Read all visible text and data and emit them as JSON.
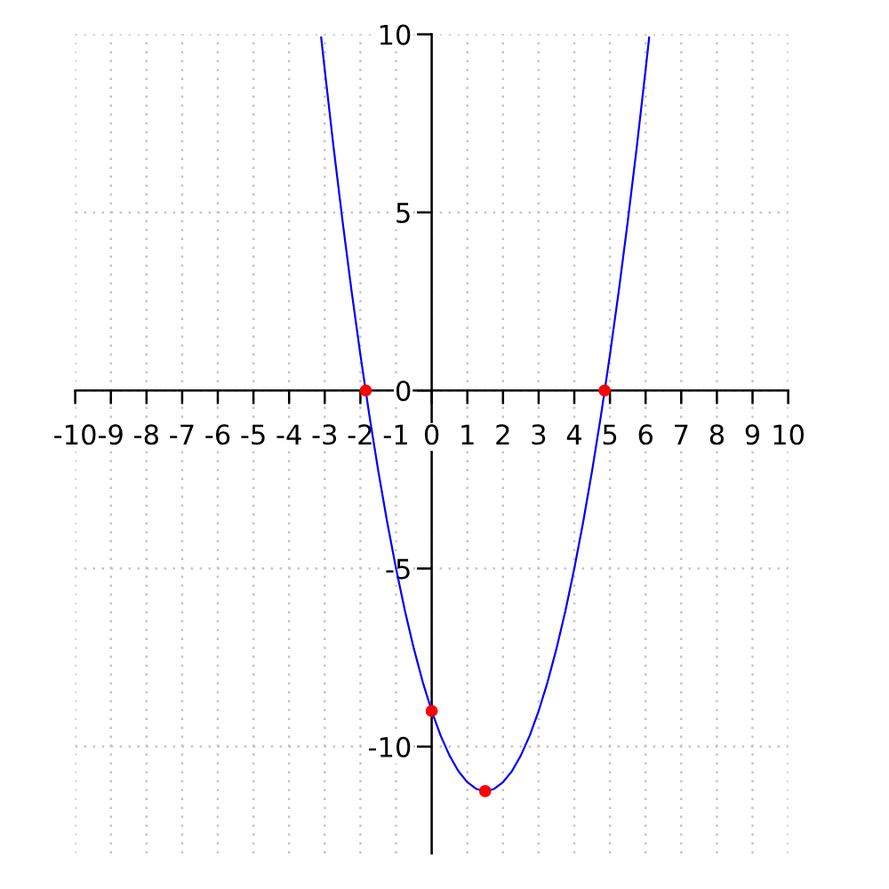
{
  "chart_data": {
    "type": "line",
    "xlim": [
      -10,
      10
    ],
    "ylim": [
      -13,
      10
    ],
    "xticks": [
      -10,
      -9,
      -8,
      -7,
      -6,
      -5,
      -4,
      -3,
      -2,
      -1,
      0,
      1,
      2,
      3,
      4,
      5,
      6,
      7,
      8,
      9,
      10
    ],
    "yticks": [
      -10,
      -5,
      0,
      5,
      10
    ],
    "grid": true,
    "series": [
      {
        "type": "line",
        "color": "#0000ff",
        "line_style": "solid",
        "marker": "none",
        "x": [
          -3.1,
          -3.0,
          -2.75,
          -2.5,
          -2.25,
          -2.0,
          -1.75,
          -1.5,
          -1.25,
          -1.0,
          -0.75,
          -0.5,
          -0.25,
          0,
          0.25,
          0.5,
          0.75,
          1.0,
          1.25,
          1.5,
          1.75,
          2.0,
          2.25,
          2.5,
          2.75,
          3.0,
          3.25,
          3.5,
          3.75,
          4.0,
          4.25,
          4.5,
          4.75,
          5.0,
          5.25,
          5.5,
          5.75,
          6.0,
          6.1
        ],
        "values": [
          9.91,
          9,
          6.81,
          4.75,
          2.81,
          1,
          -0.69,
          -2.25,
          -3.69,
          -5,
          -6.19,
          -7.25,
          -8.19,
          -9,
          -9.69,
          -10.25,
          -10.69,
          -11,
          -11.19,
          -11.25,
          -11.19,
          -11,
          -10.69,
          -10.25,
          -9.69,
          -9,
          -8.19,
          -7.25,
          -6.19,
          -5,
          -3.69,
          -2.25,
          -0.69,
          1,
          2.81,
          4.75,
          6.81,
          9,
          9.91
        ]
      },
      {
        "type": "scatter",
        "color": "#ff0000",
        "marker": "circle",
        "x": [
          -1.85,
          0,
          1.5,
          4.85
        ],
        "values": [
          0,
          -9,
          -11.25,
          0
        ]
      }
    ]
  }
}
